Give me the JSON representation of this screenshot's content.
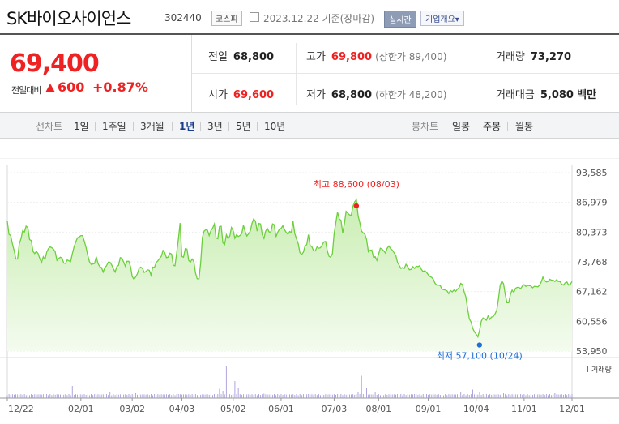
{
  "header": {
    "name": "SK바이오사이언스",
    "code": "302440",
    "market": "코스피",
    "date": "2023.12.22 기준(장마감)",
    "realtime": "실시간",
    "company": "기업개요▾"
  },
  "price": {
    "current": "69,400",
    "change_label": "전일대비",
    "change": "600",
    "rate": "+0.87%"
  },
  "stats": {
    "prev_label": "전일",
    "prev": "68,800",
    "high_label": "고가",
    "high": "69,800",
    "high_limit": "(상한가 89,400)",
    "volume_label": "거래량",
    "volume": "73,270",
    "open_label": "시가",
    "open": "69,600",
    "low_label": "저가",
    "low": "68,800",
    "low_limit": "(하한가 48,200)",
    "amount_label": "거래대금",
    "amount": "5,080",
    "amount_unit": "백만"
  },
  "tabs": {
    "line_title": "선차트",
    "line": [
      "1일",
      "1주일",
      "3개월",
      "1년",
      "3년",
      "5년",
      "10년"
    ],
    "active": "1년",
    "candle_title": "봉차트",
    "candle": [
      "일봉",
      "주봉",
      "월봉"
    ]
  },
  "chart_data": {
    "type": "area",
    "ylim": [
      53950,
      93585
    ],
    "y_ticks": [
      "93,585",
      "86,979",
      "80,373",
      "73,768",
      "67,162",
      "60,556",
      "53,950"
    ],
    "x_ticks": [
      "12/22",
      "02/01",
      "03/02",
      "04/03",
      "05/02",
      "06/01",
      "07/03",
      "08/01",
      "09/01",
      "10/04",
      "11/01",
      "12/01"
    ],
    "high_label": "최고 88,600 (08/03)",
    "low_label": "최저 57,100 (10/24)",
    "volume_label": "거래량",
    "colors": {
      "line": "#6ccf3c",
      "fill": "#dff5d0",
      "high": "#e22",
      "low": "#1e6fd9",
      "volume": "#a89bd8"
    },
    "values": [
      82800,
      79900,
      79600,
      77800,
      76300,
      74400,
      74400,
      77800,
      78900,
      80700,
      80400,
      81700,
      81400,
      78700,
      78500,
      76100,
      75600,
      76100,
      75600,
      74500,
      73600,
      74900,
      74300,
      75900,
      76700,
      77100,
      76900,
      76600,
      76000,
      74100,
      74500,
      74800,
      74600,
      73500,
      73400,
      74200,
      74000,
      73800,
      75600,
      77100,
      78200,
      79100,
      79300,
      79600,
      79600,
      78400,
      77000,
      75200,
      73800,
      73200,
      73300,
      73400,
      74900,
      73400,
      72700,
      72500,
      71500,
      72500,
      72900,
      73700,
      73700,
      73100,
      72200,
      71500,
      72700,
      73000,
      74700,
      74600,
      73700,
      72800,
      73900,
      73900,
      72700,
      70500,
      69900,
      70400,
      71100,
      72300,
      72600,
      72300,
      71400,
      71600,
      72000,
      71900,
      70800,
      72600,
      72500,
      73600,
      74000,
      74500,
      75000,
      76300,
      75800,
      74700,
      74800,
      75700,
      75500,
      73000,
      72900,
      75800,
      78900,
      82400,
      75000,
      74800,
      76700,
      76600,
      74100,
      73700,
      74400,
      73900,
      71300,
      70000,
      70000,
      73600,
      79200,
      80600,
      80900,
      80800,
      79600,
      80700,
      81300,
      82200,
      79100,
      78900,
      81600,
      81700,
      78000,
      77600,
      79800,
      78900,
      79500,
      81400,
      80700,
      79000,
      79800,
      79400,
      79600,
      80100,
      81900,
      80500,
      79500,
      80000,
      80600,
      82300,
      83300,
      82800,
      80600,
      82300,
      82200,
      79800,
      79000,
      80600,
      81200,
      80400,
      80400,
      82200,
      82000,
      79300,
      80300,
      81000,
      81200,
      81800,
      80900,
      80300,
      79900,
      80500,
      80300,
      82800,
      80100,
      78900,
      77800,
      75800,
      75400,
      75900,
      77300,
      77600,
      79800,
      77400,
      77100,
      76200,
      76200,
      77100,
      76800,
      76900,
      77500,
      78200,
      78300,
      76200,
      75000,
      74800,
      75600,
      80100,
      82500,
      84800,
      83300,
      83000,
      80200,
      82300,
      85000,
      84600,
      84200,
      84100,
      86100,
      87100,
      87600,
      84000,
      82500,
      80600,
      80200,
      79900,
      78700,
      76000,
      76300,
      76400,
      74800,
      74900,
      74100,
      75500,
      76800,
      76600,
      76200,
      75700,
      76800,
      77300,
      76700,
      76400,
      75800,
      75200,
      73700,
      73000,
      72300,
      72500,
      72300,
      73200,
      72700,
      72000,
      72100,
      72700,
      72300,
      72800,
      72700,
      72900,
      72100,
      71600,
      71800,
      71400,
      70900,
      70500,
      70300,
      69900,
      69000,
      68600,
      68600,
      68500,
      67700,
      67600,
      67500,
      67300,
      66700,
      67400,
      67100,
      67500,
      67200,
      67700,
      68000,
      69000,
      68700,
      67100,
      66000,
      63300,
      61100,
      60400,
      59000,
      58200,
      57700,
      57100,
      58500,
      60600,
      61300,
      61000,
      60800,
      61800,
      61000,
      61500,
      61600,
      62200,
      63000,
      65500,
      68500,
      69500,
      68900,
      66500,
      64700,
      64700,
      66500,
      67500,
      67000,
      67900,
      68100,
      68100,
      67800,
      68400,
      68700,
      68300,
      68500,
      68500,
      68400,
      68000,
      68300,
      68300,
      68200,
      68600,
      69300,
      70400,
      69600,
      69300,
      69400,
      69900,
      69700,
      69700,
      69400,
      69800,
      69400,
      69400,
      68800,
      68600,
      69100,
      69300,
      68600,
      68800,
      69400
    ],
    "volume_spikes": [
      [
        38,
        3.0
      ],
      [
        60,
        1.6
      ],
      [
        75,
        1.2
      ],
      [
        100,
        1.0
      ],
      [
        124,
        2.3
      ],
      [
        126,
        1.8
      ],
      [
        128,
        8.0
      ],
      [
        133,
        4.2
      ],
      [
        135,
        2.5
      ],
      [
        150,
        1.1
      ],
      [
        176,
        1.0
      ],
      [
        205,
        1.4
      ],
      [
        207,
        5.5
      ],
      [
        210,
        2.4
      ],
      [
        215,
        1.6
      ],
      [
        238,
        1.0
      ],
      [
        265,
        1.5
      ],
      [
        272,
        2.1
      ],
      [
        276,
        1.6
      ],
      [
        290,
        1.2
      ],
      [
        300,
        1.0
      ],
      [
        320,
        1.2
      ],
      [
        336,
        1.0
      ]
    ]
  }
}
